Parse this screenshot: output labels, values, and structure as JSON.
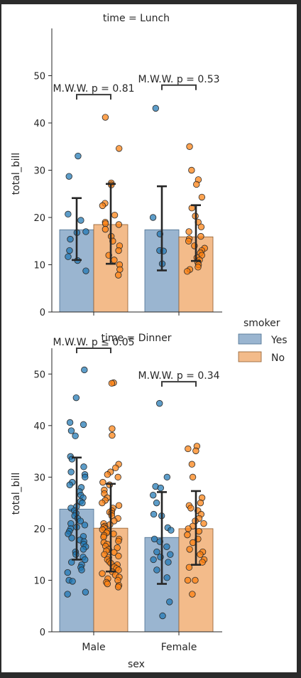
{
  "colors": {
    "yes": "#1f77b4",
    "no": "#ff7f0e",
    "yes_bar": "#9ab5d0",
    "no_bar": "#f3bb8a",
    "axis": "#262626",
    "frame_bg": "#2b2b2b"
  },
  "legend": {
    "title": "smoker",
    "items": [
      {
        "label": "Yes"
      },
      {
        "label": "No"
      }
    ]
  },
  "x_axis_label": "sex",
  "chart_data": [
    {
      "type": "bar",
      "title": "time = Lunch",
      "ylabel": "total_bill",
      "xlabel": "",
      "categories": [
        "Male",
        "Female"
      ],
      "show_xticklabels": false,
      "ylim": [
        0,
        60
      ],
      "yticks": [
        0,
        10,
        20,
        30,
        40,
        50
      ],
      "series": [
        {
          "name": "Yes",
          "values": [
            17.4,
            17.4
          ],
          "err_low": [
            11.0,
            8.8
          ],
          "err_high": [
            24.1,
            26.6
          ]
        },
        {
          "name": "No",
          "values": [
            18.5,
            15.9
          ],
          "err_low": [
            10.2,
            10.8
          ],
          "err_high": [
            27.1,
            22.6
          ]
        }
      ],
      "annotations": [
        {
          "text": "M.W.W. p = 0.81",
          "category_index": 0,
          "y": 46
        },
        {
          "text": "M.W.W. p = 0.53",
          "category_index": 1,
          "y": 48
        }
      ],
      "points": [
        [
          [
            33.0,
            28.7,
            20.7,
            19.4,
            17.0,
            16.8,
            15.4,
            13.0,
            11.7,
            10.9,
            8.7
          ],
          [
            43.1,
            20.0,
            16.5,
            13.0,
            12.9,
            10.2
          ]
        ],
        [
          [
            41.2,
            34.6,
            27.3,
            26.9,
            23.0,
            22.5,
            20.5,
            19.0,
            18.7,
            18.5,
            17.5,
            16.0,
            15.0,
            14.0,
            13.0,
            12.0,
            11.0,
            10.0,
            9.0,
            7.8
          ],
          [
            35.0,
            30.0,
            28.0,
            27.0,
            24.3,
            22.0,
            20.3,
            19.0,
            18.0,
            17.0,
            16.0,
            15.5,
            15.0,
            14.0,
            13.5,
            13.0,
            12.5,
            12.0,
            11.5,
            11.0,
            10.5,
            10.0,
            9.5,
            9.0,
            8.6
          ]
        ]
      ]
    },
    {
      "type": "bar",
      "title": "time = Dinner",
      "ylabel": "total_bill",
      "xlabel": "sex",
      "categories": [
        "Male",
        "Female"
      ],
      "show_xticklabels": true,
      "ylim": [
        0,
        55
      ],
      "yticks": [
        0,
        10,
        20,
        30,
        40,
        50
      ],
      "series": [
        {
          "name": "Yes",
          "values": [
            23.8,
            18.3
          ],
          "err_low": [
            14.0,
            9.3
          ],
          "err_high": [
            33.8,
            27.1
          ]
        },
        {
          "name": "No",
          "values": [
            20.1,
            20.0
          ],
          "err_low": [
            11.7,
            13.0
          ],
          "err_high": [
            28.7,
            27.3
          ]
        }
      ],
      "annotations": [
        {
          "text": "M.W.W. p ≤ 0.05",
          "category_index": 0,
          "y": 55
        },
        {
          "text": "M.W.W. p = 0.34",
          "category_index": 1,
          "y": 48.5
        }
      ],
      "points": [
        [
          [
            50.8,
            45.4,
            40.6,
            40.2,
            39.0,
            38.0,
            34.0,
            33.5,
            32.0,
            31.0,
            30.5,
            30.0,
            29.0,
            28.5,
            28.0,
            27.2,
            26.5,
            26.0,
            25.3,
            25.0,
            24.3,
            24.0,
            23.5,
            23.0,
            22.5,
            22.0,
            21.5,
            21.0,
            20.7,
            20.3,
            20.0,
            19.5,
            19.0,
            18.5,
            18.2,
            17.8,
            17.5,
            17.0,
            16.5,
            16.0,
            15.5,
            15.0,
            14.5,
            14.0,
            13.5,
            13.0,
            12.5,
            12.0,
            11.5,
            10.0,
            9.8,
            7.7,
            7.3
          ],
          [
            44.3,
            30.0,
            28.2,
            27.9,
            26.5,
            25.0,
            22.8,
            22.5,
            20.2,
            19.7,
            18.0,
            17.5,
            16.5,
            15.5,
            15.0,
            14.5,
            14.0,
            13.5,
            12.0,
            10.5,
            5.8,
            3.1
          ]
        ],
        [
          [
            48.3,
            48.2,
            39.4,
            38.1,
            32.5,
            31.8,
            31.0,
            30.5,
            30.0,
            29.0,
            28.5,
            27.5,
            26.8,
            26.0,
            25.5,
            25.0,
            24.5,
            24.0,
            23.5,
            23.2,
            23.0,
            22.5,
            22.0,
            21.5,
            21.0,
            20.8,
            20.5,
            20.3,
            20.0,
            19.8,
            19.5,
            19.2,
            19.0,
            18.7,
            18.4,
            18.0,
            17.6,
            17.3,
            17.0,
            16.6,
            16.3,
            16.0,
            15.7,
            15.4,
            15.0,
            14.7,
            14.4,
            14.0,
            13.6,
            13.3,
            13.0,
            12.6,
            12.3,
            12.0,
            11.6,
            11.3,
            11.0,
            10.6,
            10.3,
            10.0,
            9.6,
            9.3,
            9.0,
            8.7
          ],
          [
            36.0,
            35.5,
            35.1,
            32.5,
            30.0,
            26.0,
            25.0,
            24.5,
            24.0,
            23.5,
            22.8,
            22.0,
            21.5,
            21.0,
            20.5,
            20.0,
            19.5,
            18.8,
            18.0,
            17.3,
            16.0,
            15.5,
            15.0,
            14.0,
            13.5,
            12.5,
            10.0,
            10.0,
            7.3
          ]
        ]
      ]
    }
  ]
}
